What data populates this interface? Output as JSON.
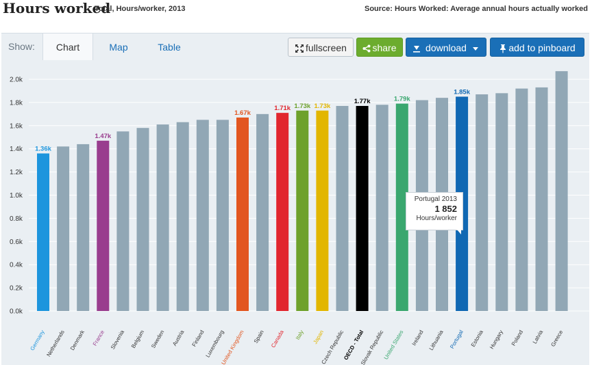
{
  "header": {
    "title": "Hours worked",
    "subtitle": "Total, Hours/worker, 2013",
    "source": "Source: Hours Worked: Average annual hours actually worked"
  },
  "toolbar": {
    "show_label": "Show:",
    "tabs": [
      {
        "label": "Chart",
        "active": true
      },
      {
        "label": "Map",
        "active": false
      },
      {
        "label": "Table",
        "active": false
      }
    ],
    "fullscreen_label": "fullscreen",
    "share_label": "share",
    "download_label": "download",
    "pinboard_label": "add to pinboard",
    "fullscreen_icon": "expand-arrows-icon",
    "share_icon": "share-icon",
    "download_icon": "download-icon",
    "download_caret_icon": "caret-down-icon",
    "pinboard_icon": "pin-icon"
  },
  "tooltip": {
    "line1": "Portugal 2013",
    "value": "1 852",
    "unit": "Hours/worker"
  },
  "colors": {
    "default_bar": "#91a7b5",
    "background": "#eaeff3",
    "gridline": "#ffffff",
    "axis_text": "#333333"
  },
  "chart_data": {
    "type": "bar",
    "ylim": [
      0,
      2.0
    ],
    "yticks": [
      "0.0k",
      "0.2k",
      "0.4k",
      "0.6k",
      "0.8k",
      "1.0k",
      "1.2k",
      "1.4k",
      "1.6k",
      "1.8k",
      "2.0k"
    ],
    "grid": true,
    "categories": [
      "Germany",
      "Netherlands",
      "Denmark",
      "France",
      "Slovenia",
      "Belgium",
      "Sweden",
      "Austria",
      "Finland",
      "Luxembourg",
      "United Kingdom",
      "Spain",
      "Canada",
      "Italy",
      "Japan",
      "Czech Republic",
      "OECD - Total",
      "Slovak Republic",
      "United States",
      "Ireland",
      "Lithuania",
      "Portugal",
      "Estonia",
      "Hungary",
      "Poland",
      "Latvia",
      "Greece"
    ],
    "values": [
      1.36,
      1.42,
      1.44,
      1.47,
      1.55,
      1.58,
      1.61,
      1.63,
      1.65,
      1.65,
      1.67,
      1.7,
      1.71,
      1.73,
      1.73,
      1.77,
      1.77,
      1.78,
      1.79,
      1.82,
      1.84,
      1.85,
      1.87,
      1.88,
      1.92,
      1.93,
      2.07
    ],
    "highlights": [
      {
        "index": 0,
        "color": "#1d95dd",
        "label": "1.36k"
      },
      {
        "index": 3,
        "color": "#993d8e",
        "label": "1.47k"
      },
      {
        "index": 10,
        "color": "#e25620",
        "label": "1.67k"
      },
      {
        "index": 12,
        "color": "#e1262e",
        "label": "1.71k"
      },
      {
        "index": 13,
        "color": "#6ea12b",
        "label": "1.73k"
      },
      {
        "index": 14,
        "color": "#e2b600",
        "label": "1.73k"
      },
      {
        "index": 16,
        "color": "#000000",
        "label": "1.77k"
      },
      {
        "index": 18,
        "color": "#3aa76f",
        "label": "1.79k"
      },
      {
        "index": 21,
        "color": "#1068b3",
        "label": "1.85k"
      }
    ]
  }
}
